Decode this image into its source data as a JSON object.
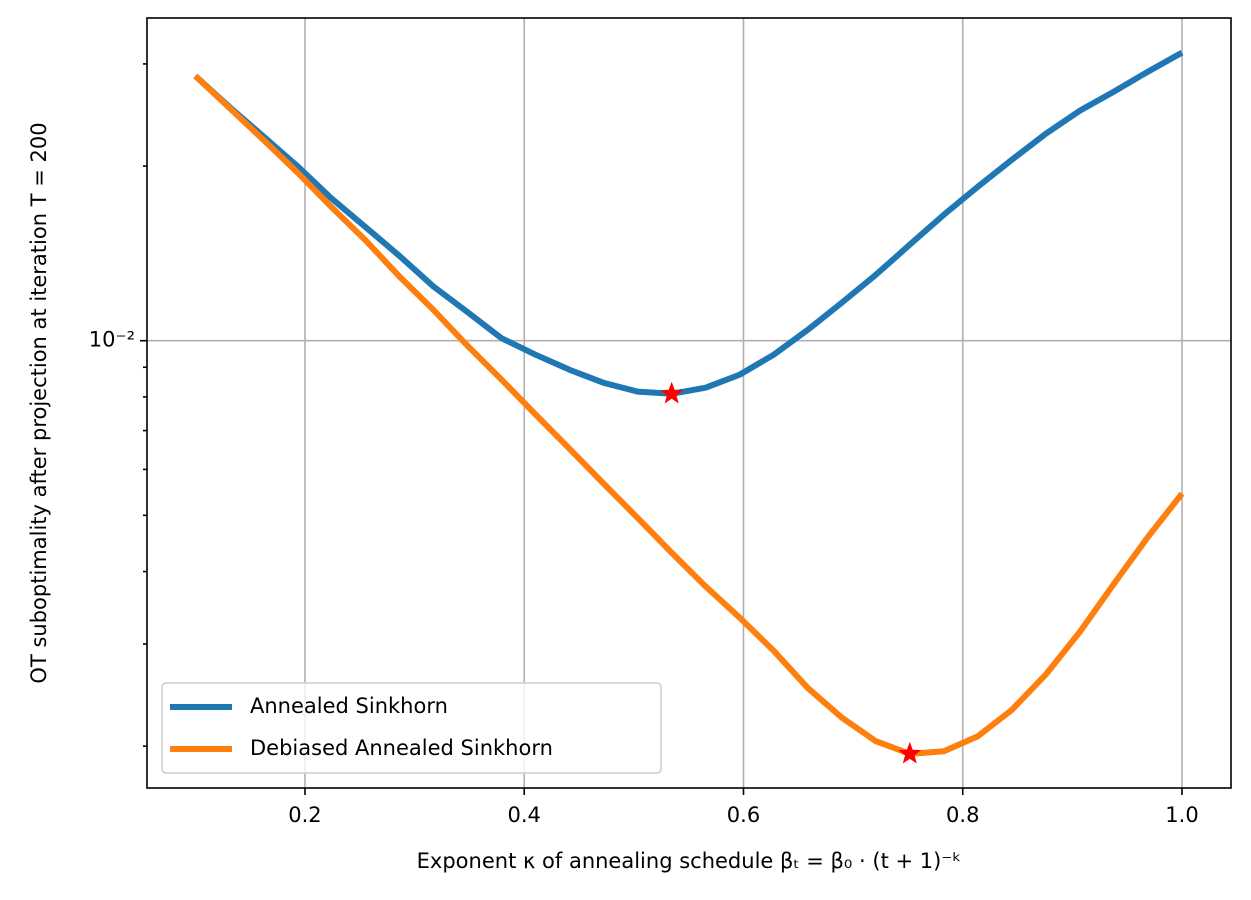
{
  "chart_data": {
    "type": "line",
    "x_label": "Exponent κ of annealing schedule βₜ = β₀ · (t + 1)⁻ᵏ",
    "y_label": "OT suboptimality after projection at iteration T = 200",
    "x": [
      0.1,
      0.131,
      0.1621,
      0.1931,
      0.2241,
      0.2552,
      0.2862,
      0.3172,
      0.3483,
      0.3793,
      0.4103,
      0.4414,
      0.4724,
      0.5034,
      0.5345,
      0.5655,
      0.5966,
      0.6276,
      0.6586,
      0.6897,
      0.7207,
      0.7517,
      0.7828,
      0.8138,
      0.8448,
      0.8759,
      0.9069,
      0.9379,
      0.969,
      1.0
    ],
    "series": [
      {
        "name": "Annealed Sinkhorn",
        "color": "#1f77b4",
        "values": [
          0.0286,
          0.0253,
          0.0225,
          0.02,
          0.0176,
          0.0157,
          0.014,
          0.0124,
          0.0112,
          0.0101,
          0.00946,
          0.00891,
          0.00846,
          0.00817,
          0.0081,
          0.0083,
          0.00874,
          0.00946,
          0.01044,
          0.01163,
          0.01299,
          0.01464,
          0.01649,
          0.01843,
          0.02051,
          0.02275,
          0.02492,
          0.02688,
          0.0291,
          0.03138
        ]
      },
      {
        "name": "Debiased Annealed Sinkhorn",
        "color": "#ff7f0e",
        "values": [
          0.0286,
          0.0252,
          0.0222,
          0.0195,
          0.017,
          0.0149,
          0.0129,
          0.0113,
          0.0098,
          0.00857,
          0.00746,
          0.00651,
          0.00567,
          0.00495,
          0.00431,
          0.00377,
          0.00333,
          0.00292,
          0.00252,
          0.00224,
          0.00204,
          0.00194,
          0.00196,
          0.00208,
          0.00231,
          0.00266,
          0.00315,
          0.00381,
          0.00459,
          0.00545
        ]
      }
    ],
    "min_marker_color": "#ff0000",
    "xlim": [
      0.0559,
      1.0447
    ],
    "ylim": [
      0.001694,
      0.036
    ],
    "xticks": [
      0.2,
      0.4,
      0.6,
      0.8,
      {
        "value": 1,
        "label": "1.0"
      }
    ],
    "yticks": [
      {
        "value": 0.01,
        "label": "10⁻²"
      }
    ],
    "yticks_minor": [
      0.002,
      0.003,
      0.004,
      0.005,
      0.006,
      0.007,
      0.008,
      0.009,
      0.02,
      0.03
    ],
    "y_log": true,
    "grid": true,
    "legend": "lower left"
  }
}
